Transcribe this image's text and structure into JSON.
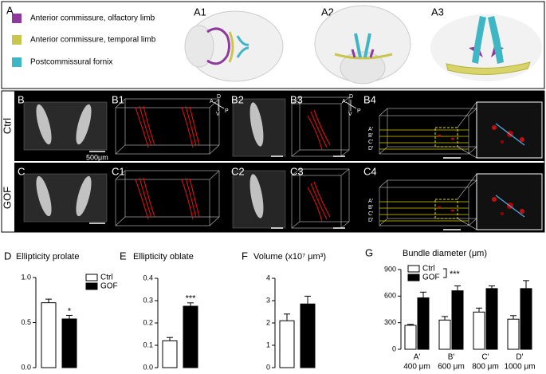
{
  "panel_a": {
    "label": "A",
    "legend": [
      {
        "name": "Anterior commissure, olfactory limb",
        "color": "#8e3a9c"
      },
      {
        "name": "Anterior commissure, temporal limb",
        "color": "#c9c64e"
      },
      {
        "name": "Postcommissural fornix",
        "color": "#3fb6c4"
      }
    ],
    "views": [
      "A1",
      "A2",
      "A3"
    ]
  },
  "rows": [
    {
      "name": "Ctrl",
      "panels": [
        "B",
        "B1",
        "B2",
        "B3",
        "B4"
      ]
    },
    {
      "name": "GOF",
      "panels": [
        "C",
        "C1",
        "C2",
        "C3",
        "C4"
      ]
    }
  ],
  "scale_bar": "500μm",
  "orientation": [
    "A",
    "D",
    "V",
    "P"
  ],
  "section_labels": [
    "A'",
    "B'",
    "C'",
    "D'"
  ],
  "chart_data": [
    {
      "type": "bar",
      "panel_label": "D",
      "title": "Ellipticity prolate",
      "series": [
        {
          "name": "Ctrl",
          "color": "#ffffff",
          "values": [
            0.72
          ],
          "errors": [
            0.04
          ]
        },
        {
          "name": "GOF",
          "color": "#000000",
          "values": [
            0.54
          ],
          "errors": [
            0.04
          ]
        }
      ],
      "annotation": "*",
      "legend": "upper right",
      "ylim": [
        0,
        1
      ],
      "yticks": [
        {
          "value": 0,
          "label": "0.0"
        },
        0.5,
        {
          "value": 1,
          "label": "1.0"
        }
      ]
    },
    {
      "type": "bar",
      "panel_label": "E",
      "title": "Ellipticity oblate",
      "series": [
        {
          "name": "Ctrl",
          "color": "#ffffff",
          "values": [
            0.12
          ],
          "errors": [
            0.015
          ]
        },
        {
          "name": "GOF",
          "color": "#000000",
          "values": [
            0.275
          ],
          "errors": [
            0.015
          ]
        }
      ],
      "annotation": "***",
      "ylim": [
        0,
        0.4
      ],
      "yticks": [
        {
          "value": 0,
          "label": "0.0"
        },
        0.1,
        0.2,
        0.3,
        0.4
      ]
    },
    {
      "type": "bar",
      "panel_label": "F",
      "title": "Volume (x10⁷ μm³)",
      "series": [
        {
          "name": "Ctrl",
          "color": "#ffffff",
          "values": [
            2.1
          ],
          "errors": [
            0.3
          ]
        },
        {
          "name": "GOF",
          "color": "#000000",
          "values": [
            2.85
          ],
          "errors": [
            0.35
          ]
        }
      ],
      "ylim": [
        0,
        4
      ],
      "yticks": [
        0,
        1,
        2,
        3,
        4
      ]
    },
    {
      "type": "bar",
      "panel_label": "G",
      "title": "Bundle diameter (μm)",
      "categories": [
        "A'",
        "B'",
        "C'",
        "D'"
      ],
      "category_sublabels": [
        "400 μm",
        "600 μm",
        "800 μm",
        "1000 μm"
      ],
      "series": [
        {
          "name": "Ctrl",
          "color": "#ffffff",
          "values": [
            270,
            330,
            420,
            340
          ],
          "errors": [
            12,
            40,
            45,
            40
          ]
        },
        {
          "name": "GOF",
          "color": "#000000",
          "values": [
            580,
            660,
            685,
            685
          ],
          "errors": [
            65,
            55,
            30,
            90
          ]
        }
      ],
      "annotation": "***",
      "legend": "upper left",
      "ylim": [
        0,
        900
      ],
      "yticks": [
        0,
        300,
        600,
        900
      ]
    }
  ]
}
